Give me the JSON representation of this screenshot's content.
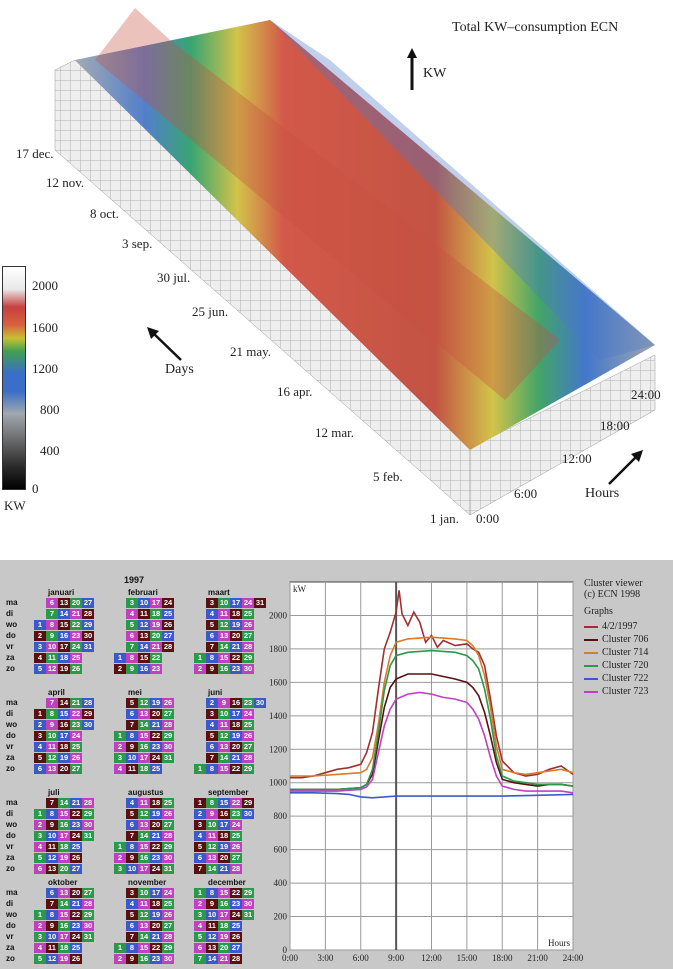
{
  "top_panel": {
    "title": "Total KW–consumption ECN",
    "kw_arrow_label": "KW",
    "days_arrow_label": "Days",
    "hours_arrow_label": "Hours",
    "day_labels": [
      "17 dec.",
      "12 nov.",
      "8 oct.",
      "3 sep.",
      "30 jul.",
      "25 jun.",
      "21 may.",
      "16 apr.",
      "12 mar.",
      "5 feb.",
      "1 jan."
    ],
    "hour_labels": [
      "0:00",
      "6:00",
      "12:00",
      "18:00",
      "24:00"
    ],
    "colorbar": {
      "ticks": [
        "2000",
        "1600",
        "1200",
        "800",
        "400",
        "0"
      ],
      "unit": "KW"
    }
  },
  "calendar": {
    "year": "1997",
    "weekday_labels": [
      "ma",
      "di",
      "wo",
      "do",
      "vr",
      "za",
      "zo"
    ],
    "months": [
      {
        "name": "januari",
        "rows": [
          [
            "",
            "6",
            "13",
            "20",
            "27"
          ],
          [
            "",
            "7",
            "14",
            "21",
            "28"
          ],
          [
            "1",
            "8",
            "15",
            "22",
            "29"
          ],
          [
            "2",
            "9",
            "16",
            "23",
            "30"
          ],
          [
            "3",
            "10",
            "17",
            "24",
            "31"
          ],
          [
            "4",
            "11",
            "18",
            "25",
            ""
          ],
          [
            "5",
            "12",
            "19",
            "26",
            ""
          ]
        ]
      },
      {
        "name": "februari",
        "rows": [
          [
            "",
            "3",
            "10",
            "17",
            "24"
          ],
          [
            "",
            "4",
            "11",
            "18",
            "25"
          ],
          [
            "",
            "5",
            "12",
            "19",
            "26"
          ],
          [
            "",
            "6",
            "13",
            "20",
            "27"
          ],
          [
            "",
            "7",
            "14",
            "21",
            "28"
          ],
          [
            "1",
            "8",
            "15",
            "22",
            ""
          ],
          [
            "2",
            "9",
            "16",
            "23",
            ""
          ]
        ]
      },
      {
        "name": "maart",
        "rows": [
          [
            "",
            "3",
            "10",
            "17",
            "24",
            "31"
          ],
          [
            "",
            "4",
            "11",
            "18",
            "25",
            ""
          ],
          [
            "",
            "5",
            "12",
            "19",
            "26",
            ""
          ],
          [
            "",
            "6",
            "13",
            "20",
            "27",
            ""
          ],
          [
            "",
            "7",
            "14",
            "21",
            "28",
            ""
          ],
          [
            "1",
            "8",
            "15",
            "22",
            "29",
            ""
          ],
          [
            "2",
            "9",
            "16",
            "23",
            "30",
            ""
          ]
        ]
      },
      {
        "name": "april",
        "rows": [
          [
            "",
            "7",
            "14",
            "21",
            "28"
          ],
          [
            "1",
            "8",
            "15",
            "22",
            "29"
          ],
          [
            "2",
            "9",
            "16",
            "23",
            "30"
          ],
          [
            "3",
            "10",
            "17",
            "24",
            ""
          ],
          [
            "4",
            "11",
            "18",
            "25",
            ""
          ],
          [
            "5",
            "12",
            "19",
            "26",
            ""
          ],
          [
            "6",
            "13",
            "20",
            "27",
            ""
          ]
        ]
      },
      {
        "name": "mei",
        "rows": [
          [
            "",
            "5",
            "12",
            "19",
            "26"
          ],
          [
            "",
            "6",
            "13",
            "20",
            "27"
          ],
          [
            "",
            "7",
            "14",
            "21",
            "28"
          ],
          [
            "1",
            "8",
            "15",
            "22",
            "29"
          ],
          [
            "2",
            "9",
            "16",
            "23",
            "30"
          ],
          [
            "3",
            "10",
            "17",
            "24",
            "31"
          ],
          [
            "4",
            "11",
            "18",
            "25",
            ""
          ]
        ]
      },
      {
        "name": "juni",
        "rows": [
          [
            "",
            "2",
            "9",
            "16",
            "23",
            "30"
          ],
          [
            "",
            "3",
            "10",
            "17",
            "24",
            ""
          ],
          [
            "",
            "4",
            "11",
            "18",
            "25",
            ""
          ],
          [
            "",
            "5",
            "12",
            "19",
            "26",
            ""
          ],
          [
            "",
            "6",
            "13",
            "20",
            "27",
            ""
          ],
          [
            "",
            "7",
            "14",
            "21",
            "28",
            ""
          ],
          [
            "1",
            "8",
            "15",
            "22",
            "29",
            ""
          ]
        ]
      },
      {
        "name": "juli",
        "rows": [
          [
            "",
            "7",
            "14",
            "21",
            "28"
          ],
          [
            "1",
            "8",
            "15",
            "22",
            "29"
          ],
          [
            "2",
            "9",
            "16",
            "23",
            "30"
          ],
          [
            "3",
            "10",
            "17",
            "24",
            "31"
          ],
          [
            "4",
            "11",
            "18",
            "25",
            ""
          ],
          [
            "5",
            "12",
            "19",
            "26",
            ""
          ],
          [
            "6",
            "13",
            "20",
            "27",
            ""
          ]
        ]
      },
      {
        "name": "augustus",
        "rows": [
          [
            "",
            "4",
            "11",
            "18",
            "25"
          ],
          [
            "",
            "5",
            "12",
            "19",
            "26"
          ],
          [
            "",
            "6",
            "13",
            "20",
            "27"
          ],
          [
            "",
            "7",
            "14",
            "21",
            "28"
          ],
          [
            "1",
            "8",
            "15",
            "22",
            "29"
          ],
          [
            "2",
            "9",
            "16",
            "23",
            "30"
          ],
          [
            "3",
            "10",
            "17",
            "24",
            "31"
          ]
        ]
      },
      {
        "name": "september",
        "rows": [
          [
            "1",
            "8",
            "15",
            "22",
            "29"
          ],
          [
            "2",
            "9",
            "16",
            "23",
            "30"
          ],
          [
            "3",
            "10",
            "17",
            "24",
            ""
          ],
          [
            "4",
            "11",
            "18",
            "25",
            ""
          ],
          [
            "5",
            "12",
            "19",
            "26",
            ""
          ],
          [
            "6",
            "13",
            "20",
            "27",
            ""
          ],
          [
            "7",
            "14",
            "21",
            "28",
            ""
          ]
        ]
      },
      {
        "name": "oktober",
        "rows": [
          [
            "",
            "6",
            "13",
            "20",
            "27"
          ],
          [
            "",
            "7",
            "14",
            "21",
            "28"
          ],
          [
            "1",
            "8",
            "15",
            "22",
            "29"
          ],
          [
            "2",
            "9",
            "16",
            "23",
            "30"
          ],
          [
            "3",
            "10",
            "17",
            "24",
            "31"
          ],
          [
            "4",
            "11",
            "18",
            "25",
            ""
          ],
          [
            "5",
            "12",
            "19",
            "26",
            ""
          ]
        ]
      },
      {
        "name": "november",
        "rows": [
          [
            "",
            "3",
            "10",
            "17",
            "24"
          ],
          [
            "",
            "4",
            "11",
            "18",
            "25"
          ],
          [
            "",
            "5",
            "12",
            "19",
            "26"
          ],
          [
            "",
            "6",
            "13",
            "20",
            "27"
          ],
          [
            "",
            "7",
            "14",
            "21",
            "28"
          ],
          [
            "1",
            "8",
            "15",
            "22",
            "29"
          ],
          [
            "2",
            "9",
            "16",
            "23",
            "30"
          ]
        ]
      },
      {
        "name": "december",
        "rows": [
          [
            "1",
            "8",
            "15",
            "22",
            "29"
          ],
          [
            "2",
            "9",
            "16",
            "23",
            "30"
          ],
          [
            "3",
            "10",
            "17",
            "24",
            "31"
          ],
          [
            "4",
            "11",
            "18",
            "25",
            ""
          ],
          [
            "5",
            "12",
            "19",
            "26",
            ""
          ],
          [
            "6",
            "13",
            "20",
            "27",
            ""
          ],
          [
            "7",
            "14",
            "21",
            "28",
            ""
          ]
        ]
      }
    ]
  },
  "legend": {
    "title_line1": "Cluster viewer",
    "title_line2": "(c) ECN 1998",
    "graphs_label": "Graphs"
  },
  "chart_data": {
    "type": "line",
    "xlabel": "Hours",
    "ylabel": "kW",
    "xlim": [
      0,
      24
    ],
    "ylim": [
      0,
      2200
    ],
    "x_ticks": [
      "0:00",
      "3:00",
      "6:00",
      "9:00",
      "12:00",
      "15:00",
      "18:00",
      "21:00",
      "24:00"
    ],
    "y_ticks": [
      "0",
      "200",
      "400",
      "600",
      "800",
      "1000",
      "1200",
      "1400",
      "1600",
      "1800",
      "2000"
    ],
    "grid": true,
    "legend_placement": "right",
    "series": [
      {
        "name": "4/2/1997",
        "color": "#a03030",
        "x": [
          0,
          1,
          2,
          3,
          4,
          5,
          6,
          6.5,
          7,
          7.5,
          8,
          8.5,
          9,
          9.25,
          9.5,
          10,
          10.5,
          11,
          11.5,
          12,
          12.5,
          13,
          14,
          15,
          15.5,
          16,
          16.5,
          17,
          17.5,
          18,
          19,
          20,
          21,
          22,
          23,
          24
        ],
        "y": [
          1030,
          1030,
          1040,
          1060,
          1080,
          1090,
          1110,
          1180,
          1300,
          1560,
          1800,
          1900,
          2020,
          2150,
          2010,
          1940,
          2020,
          1960,
          1840,
          1880,
          1810,
          1850,
          1820,
          1830,
          1800,
          1780,
          1700,
          1500,
          1280,
          1130,
          1060,
          1040,
          1050,
          1080,
          1100,
          1050
        ]
      },
      {
        "name": "Cluster 706",
        "color": "#5a1010",
        "x": [
          0,
          2,
          4,
          6,
          6.5,
          7,
          7.5,
          8,
          8.5,
          9,
          10,
          12,
          14,
          15,
          15.5,
          16,
          16.5,
          17,
          17.5,
          18,
          19,
          20,
          21,
          22,
          23,
          24
        ],
        "y": [
          960,
          960,
          960,
          970,
          990,
          1050,
          1250,
          1450,
          1570,
          1620,
          1650,
          1650,
          1620,
          1600,
          1570,
          1520,
          1420,
          1280,
          1120,
          1020,
          1000,
          990,
          980,
          990,
          990,
          980
        ]
      },
      {
        "name": "Cluster 714",
        "color": "#d97b2a",
        "x": [
          0,
          2,
          4,
          6,
          6.5,
          7,
          7.5,
          8,
          8.5,
          9,
          10,
          12,
          14,
          15,
          15.5,
          16,
          16.5,
          17,
          17.5,
          18,
          19,
          20,
          21,
          22,
          23,
          24
        ],
        "y": [
          1040,
          1040,
          1050,
          1060,
          1080,
          1150,
          1350,
          1600,
          1760,
          1840,
          1860,
          1870,
          1860,
          1850,
          1820,
          1760,
          1640,
          1450,
          1220,
          1080,
          1060,
          1050,
          1060,
          1070,
          1080,
          1060
        ]
      },
      {
        "name": "Cluster 720",
        "color": "#2a9a4a",
        "x": [
          0,
          2,
          4,
          6,
          6.5,
          7,
          7.5,
          8,
          8.5,
          9,
          10,
          12,
          14,
          15,
          15.5,
          16,
          16.5,
          17,
          17.5,
          18,
          19,
          20,
          21,
          22,
          23,
          24
        ],
        "y": [
          960,
          960,
          960,
          970,
          990,
          1080,
          1300,
          1550,
          1700,
          1760,
          1780,
          1790,
          1780,
          1760,
          1730,
          1680,
          1560,
          1380,
          1160,
          1040,
          1010,
          1000,
          990,
          990,
          990,
          980
        ]
      },
      {
        "name": "Cluster 722",
        "color": "#3a5acc",
        "x": [
          0,
          2,
          4,
          5,
          6,
          7,
          8,
          9,
          12,
          15,
          18,
          21,
          24
        ],
        "y": [
          940,
          940,
          935,
          930,
          915,
          910,
          915,
          920,
          920,
          920,
          920,
          925,
          930
        ]
      },
      {
        "name": "Cluster 723",
        "color": "#c040c0",
        "x": [
          0,
          2,
          4,
          6,
          6.5,
          7,
          7.5,
          8,
          8.5,
          9,
          10,
          11,
          12,
          13,
          14,
          15,
          15.5,
          16,
          16.5,
          17,
          17.5,
          18,
          19,
          20,
          21,
          22,
          23,
          24
        ],
        "y": [
          950,
          950,
          950,
          960,
          975,
          1020,
          1180,
          1340,
          1440,
          1500,
          1530,
          1540,
          1530,
          1510,
          1500,
          1480,
          1440,
          1380,
          1280,
          1150,
          1040,
          980,
          960,
          950,
          950,
          950,
          950,
          940
        ]
      }
    ]
  },
  "colors": {
    "bottom_background": "#c8c8c8",
    "plot_background": "#ffffff"
  }
}
